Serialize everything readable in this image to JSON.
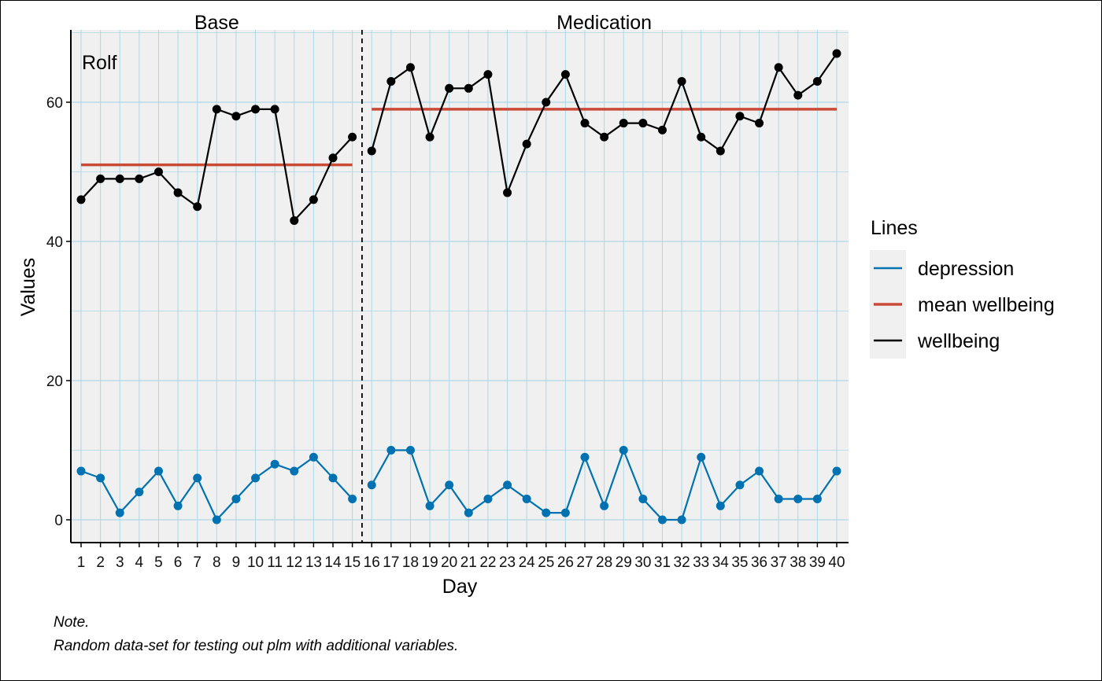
{
  "chart_data": {
    "type": "line",
    "case_label": "Rolf",
    "xlabel": "Day",
    "ylabel": "Values",
    "x": [
      1,
      2,
      3,
      4,
      5,
      6,
      7,
      8,
      9,
      10,
      11,
      12,
      13,
      14,
      15,
      16,
      17,
      18,
      19,
      20,
      21,
      22,
      23,
      24,
      25,
      26,
      27,
      28,
      29,
      30,
      31,
      32,
      33,
      34,
      35,
      36,
      37,
      38,
      39,
      40
    ],
    "xlim": [
      1,
      40
    ],
    "ylim": [
      -3,
      70
    ],
    "yticks": [
      0,
      20,
      40,
      60
    ],
    "grid": true,
    "phases": [
      {
        "name": "Base",
        "start": 1,
        "end": 15
      },
      {
        "name": "Medication",
        "start": 16,
        "end": 40
      }
    ],
    "phase_separator_x": 15.5,
    "series": [
      {
        "name": "wellbeing",
        "color": "#000000",
        "values": [
          46,
          49,
          49,
          49,
          50,
          47,
          45,
          59,
          58,
          59,
          59,
          43,
          46,
          52,
          55,
          53,
          63,
          65,
          55,
          62,
          62,
          64,
          47,
          54,
          60,
          64,
          57,
          55,
          57,
          57,
          56,
          63,
          55,
          53,
          58,
          57,
          65,
          61,
          63,
          67
        ]
      },
      {
        "name": "depression",
        "color": "#0072B2",
        "values": [
          7,
          6,
          1,
          4,
          7,
          2,
          6,
          0,
          3,
          6,
          8,
          7,
          9,
          6,
          3,
          5,
          10,
          10,
          2,
          5,
          1,
          3,
          5,
          3,
          1,
          1,
          9,
          2,
          10,
          3,
          0,
          0,
          9,
          2,
          5,
          7,
          3,
          3,
          3,
          7
        ]
      },
      {
        "name": "mean wellbeing",
        "color": "#C94A36",
        "segments": [
          {
            "from": 1,
            "to": 15,
            "value": 51
          },
          {
            "from": 16,
            "to": 40,
            "value": 59
          }
        ]
      }
    ],
    "legend": {
      "title": "Lines",
      "position": "right",
      "entries": [
        {
          "label": "depression",
          "color": "#0072B2"
        },
        {
          "label": "mean wellbeing",
          "color": "#C94A36"
        },
        {
          "label": "wellbeing",
          "color": "#000000"
        }
      ]
    }
  },
  "note": {
    "title": "Note.",
    "text": "Random data-set for testing out plm with additional variables."
  },
  "colors": {
    "panel_bg": "#F0F0F0",
    "grid": "#ADD8E6",
    "wellbeing": "#000000",
    "depression": "#0072B2",
    "mean": "#C94A36"
  }
}
